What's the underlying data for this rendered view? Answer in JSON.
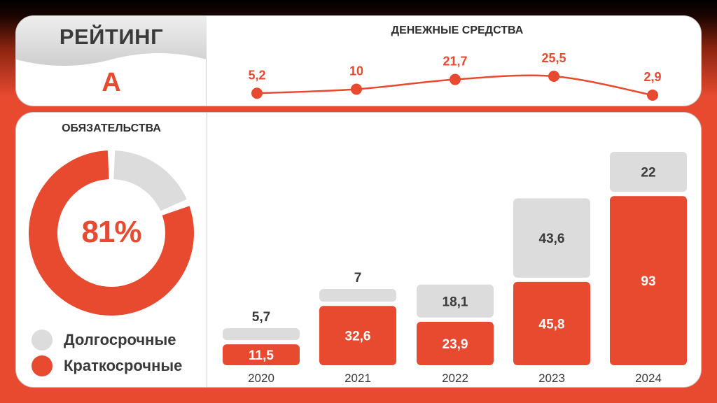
{
  "rating": {
    "title": "РЕЙТИНГ",
    "value": "А"
  },
  "colors": {
    "accent": "#e84a30",
    "gray": "#dcdcdc",
    "dark_text": "#3a3a3a"
  },
  "chart_data": [
    {
      "type": "line",
      "title": "ДЕНЕЖНЫЕ СРЕДСТВА",
      "x": [
        "2020",
        "2021",
        "2022",
        "2023",
        "2024"
      ],
      "values": [
        5.2,
        10,
        21.7,
        25.5,
        2.9
      ],
      "labels": [
        "5,2",
        "10",
        "21,7",
        "25,5",
        "2,9"
      ]
    },
    {
      "type": "pie",
      "title": "ОБЯЗАТЕЛЬСТВА",
      "center_label": "81%",
      "slices": [
        {
          "name": "Краткосрочные",
          "value": 81
        },
        {
          "name": "Долгосрочные",
          "value": 19
        }
      ],
      "legend": [
        "Долгосрочные",
        "Краткосрочные"
      ]
    },
    {
      "type": "bar",
      "stacked": true,
      "categories": [
        "2020",
        "2021",
        "2022",
        "2023",
        "2024"
      ],
      "series": [
        {
          "name": "Краткосрочные",
          "values": [
            11.5,
            32.6,
            23.9,
            45.8,
            93
          ],
          "labels": [
            "11,5",
            "32,6",
            "23,9",
            "45,8",
            "93"
          ]
        },
        {
          "name": "Долгосрочные",
          "values": [
            5.7,
            7,
            18.1,
            43.6,
            22
          ],
          "labels": [
            "5,7",
            "7",
            "18,1",
            "43,6",
            "22"
          ]
        }
      ]
    }
  ]
}
